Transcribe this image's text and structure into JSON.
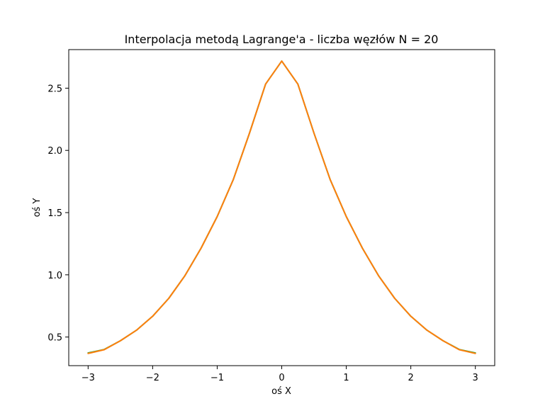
{
  "chart_data": {
    "type": "line",
    "title": "Interpolacja metodą Lagrange'a - liczba węzłów N = 20",
    "xlabel": "oś X",
    "ylabel": "oś Y",
    "xlim": [
      -3.3,
      3.3
    ],
    "ylim": [
      0.27,
      2.81
    ],
    "xticks": [
      -3,
      -2,
      -1,
      0,
      1,
      2,
      3
    ],
    "xtick_labels": [
      "−3",
      "−2",
      "−1",
      "0",
      "1",
      "2",
      "3"
    ],
    "yticks": [
      0.5,
      1.0,
      1.5,
      2.0,
      2.5
    ],
    "ytick_labels": [
      "0.5",
      "1.0",
      "1.5",
      "2.0",
      "2.5"
    ],
    "grid": false,
    "legend": "none",
    "series": [
      {
        "color": "#2ca02c",
        "x": [
          -3.0,
          -2.75,
          -2.5,
          -2.25,
          -2.0,
          -1.75,
          -1.5,
          -1.25,
          -1.0,
          -0.75,
          -0.5,
          -0.25,
          0.0,
          0.25,
          0.5,
          0.75,
          1.0,
          1.25,
          1.5,
          1.75,
          2.0,
          2.25,
          2.5,
          2.75,
          3.0
        ],
        "y": [
          0.372,
          0.4,
          0.47,
          0.555,
          0.667,
          0.811,
          0.993,
          1.214,
          1.468,
          1.766,
          2.138,
          2.533,
          2.718,
          2.533,
          2.138,
          1.766,
          1.468,
          1.214,
          0.993,
          0.811,
          0.667,
          0.555,
          0.47,
          0.4,
          0.372
        ]
      },
      {
        "color": "#ff7f0e",
        "x": [
          -3.0,
          -2.75,
          -2.5,
          -2.25,
          -2.0,
          -1.75,
          -1.5,
          -1.25,
          -1.0,
          -0.75,
          -0.5,
          -0.25,
          0.0,
          0.25,
          0.5,
          0.75,
          1.0,
          1.25,
          1.5,
          1.75,
          2.0,
          2.25,
          2.5,
          2.75,
          3.0
        ],
        "y": [
          0.368,
          0.398,
          0.47,
          0.555,
          0.667,
          0.811,
          0.993,
          1.214,
          1.468,
          1.766,
          2.138,
          2.533,
          2.718,
          2.533,
          2.138,
          1.766,
          1.468,
          1.214,
          0.993,
          0.811,
          0.667,
          0.555,
          0.47,
          0.398,
          0.368
        ]
      }
    ]
  }
}
